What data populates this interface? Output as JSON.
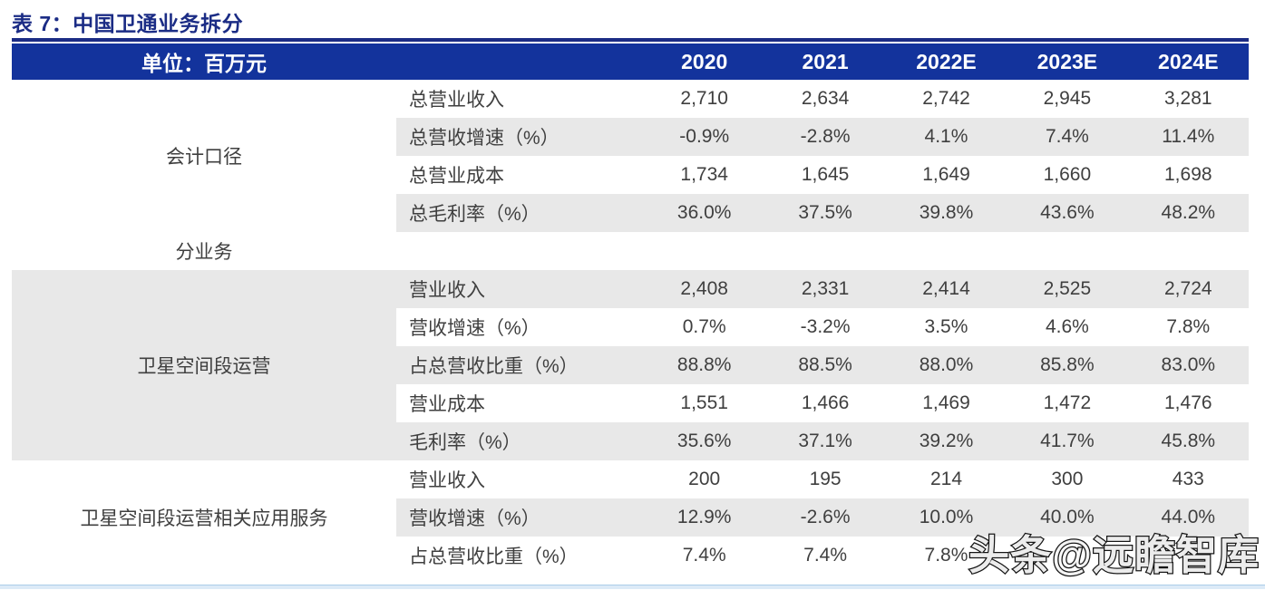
{
  "title": "表 7：中国卫通业务拆分",
  "table": {
    "unit_header": "单位：百万元",
    "year_columns": [
      "2020",
      "2021",
      "2022E",
      "2023E",
      "2024E"
    ],
    "groups": [
      {
        "name": "会计口径",
        "highlight": false,
        "rows": [
          {
            "label": "总营业收入",
            "values": [
              "2,710",
              "2,634",
              "2,742",
              "2,945",
              "3,281"
            ]
          },
          {
            "label": "总营收增速（%）",
            "values": [
              "-0.9%",
              "-2.8%",
              "4.1%",
              "7.4%",
              "11.4%"
            ]
          },
          {
            "label": "总营业成本",
            "values": [
              "1,734",
              "1,645",
              "1,649",
              "1,660",
              "1,698"
            ]
          },
          {
            "label": "总毛利率（%）",
            "values": [
              "36.0%",
              "37.5%",
              "39.8%",
              "43.6%",
              "48.2%"
            ]
          }
        ]
      },
      {
        "name": "分业务",
        "highlight": false,
        "rows": [
          {
            "label": "",
            "values": [
              "",
              "",
              "",
              "",
              ""
            ]
          }
        ]
      },
      {
        "name": "卫星空间段运营",
        "highlight": true,
        "rows": [
          {
            "label": "营业收入",
            "values": [
              "2,408",
              "2,331",
              "2,414",
              "2,525",
              "2,724"
            ]
          },
          {
            "label": "营收增速（%）",
            "values": [
              "0.7%",
              "-3.2%",
              "3.5%",
              "4.6%",
              "7.8%"
            ]
          },
          {
            "label": "占总营收比重（%）",
            "values": [
              "88.8%",
              "88.5%",
              "88.0%",
              "85.8%",
              "83.0%"
            ]
          },
          {
            "label": "营业成本",
            "values": [
              "1,551",
              "1,466",
              "1,469",
              "1,472",
              "1,476"
            ]
          },
          {
            "label": "毛利率（%）",
            "values": [
              "35.6%",
              "37.1%",
              "39.2%",
              "41.7%",
              "45.8%"
            ]
          }
        ]
      },
      {
        "name": "卫星空间段运营相关应用服务",
        "highlight": false,
        "rows": [
          {
            "label": "营业收入",
            "values": [
              "200",
              "195",
              "214",
              "300",
              "433"
            ]
          },
          {
            "label": "营收增速（%）",
            "values": [
              "12.9%",
              "-2.6%",
              "10.0%",
              "40.0%",
              "44.0%"
            ]
          },
          {
            "label": "占总营收比重（%）",
            "values": [
              "7.4%",
              "7.4%",
              "7.8%",
              "",
              ""
            ]
          }
        ]
      }
    ]
  },
  "watermark": {
    "text": "头条@远瞻智库"
  },
  "colors": {
    "title_navy": "#1B2C85",
    "header_bar": "#13339C",
    "stripe": "#E8E8E8",
    "body_text": "#3F3F3F",
    "bottom_bar": "#DCEAF7",
    "bottom_bar_edge": "#ABCDE8"
  }
}
